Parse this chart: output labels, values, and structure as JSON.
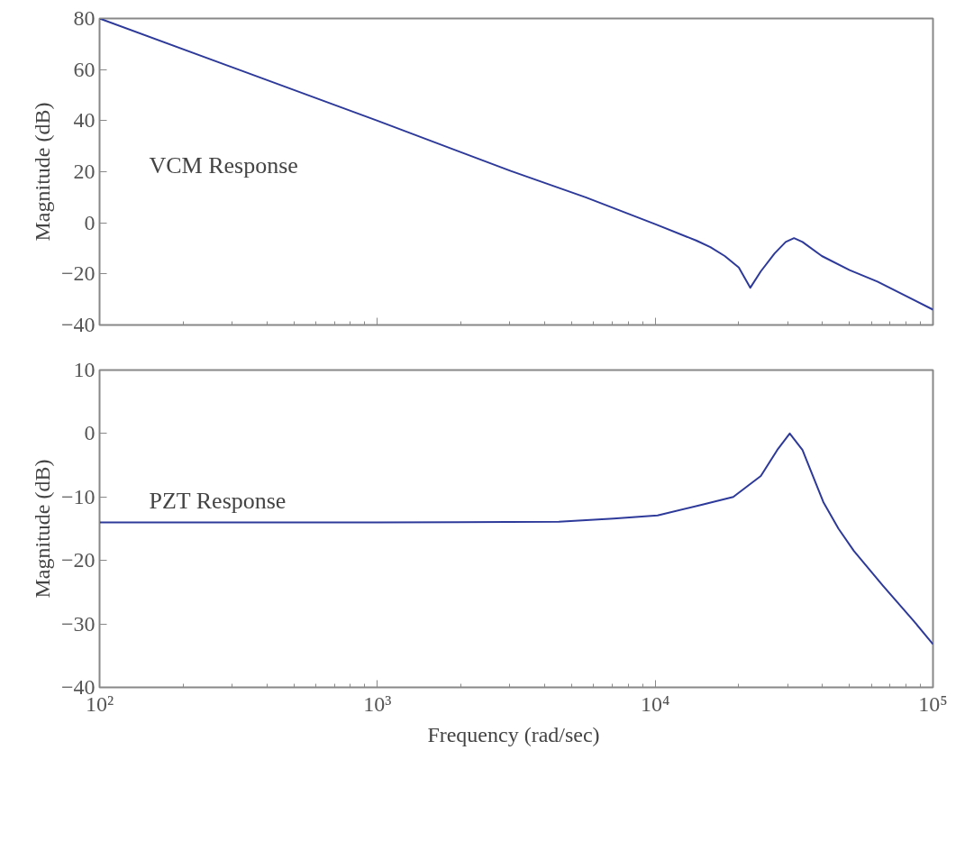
{
  "chart_data": [
    {
      "type": "line",
      "ylabel": "Magnitude (dB)",
      "annotations": [
        "VCM Response"
      ],
      "log": "x",
      "grid": false,
      "tick_labels": "y",
      "xlim": [
        100,
        100000
      ],
      "ylim": [
        -40,
        80
      ],
      "xticks": [
        {
          "value": 100,
          "label": null
        },
        {
          "value": 1000,
          "label": null
        },
        {
          "value": 10000,
          "label": null
        },
        {
          "value": 100000,
          "label": null
        }
      ],
      "yticks": [
        -40,
        -20,
        0,
        20,
        40,
        60,
        80
      ],
      "series": [
        {
          "color": "#2e3a9a",
          "x": [
            100,
            316,
            1000,
            3020,
            5620,
            10000,
            14100,
            15800,
            17800,
            20000,
            22000,
            24000,
            26900,
            29500,
            31600,
            33900,
            39800,
            50100,
            63100,
            79400,
            100000
          ],
          "values": [
            80,
            60,
            40,
            20.3,
            10,
            -0.5,
            -7,
            -9.5,
            -13,
            -17.5,
            -25.4,
            -19,
            -12,
            -7.5,
            -6,
            -7.5,
            -13,
            -18.5,
            -23,
            -28.5,
            -34
          ]
        }
      ]
    },
    {
      "type": "line",
      "ylabel": "Magnitude (dB)",
      "xlabel": "Frequency  (rad/sec)",
      "annotations": [
        "PZT Response"
      ],
      "log": "x",
      "grid": false,
      "xlim": [
        100,
        100000
      ],
      "ylim": [
        -40,
        10
      ],
      "xticks": [
        {
          "value": 100,
          "label": "10²"
        },
        {
          "value": 1000,
          "label": "10³"
        },
        {
          "value": 10000,
          "label": "10⁴"
        },
        {
          "value": 100000,
          "label": "10⁵"
        }
      ],
      "yticks": [
        -40,
        -30,
        -20,
        -10,
        0,
        10
      ],
      "series": [
        {
          "color": "#2e3a9a",
          "x": [
            100,
            1000,
            4500,
            7080,
            10200,
            14800,
            19100,
            24000,
            27500,
            30500,
            33900,
            40300,
            45700,
            51900,
            66100,
            85100,
            100000
          ],
          "values": [
            -14,
            -14,
            -13.9,
            -13.4,
            -12.9,
            -11.2,
            -10,
            -6.7,
            -2.6,
            0,
            -2.6,
            -10.8,
            -15,
            -18.5,
            -24,
            -29.5,
            -33.2
          ]
        }
      ]
    }
  ]
}
